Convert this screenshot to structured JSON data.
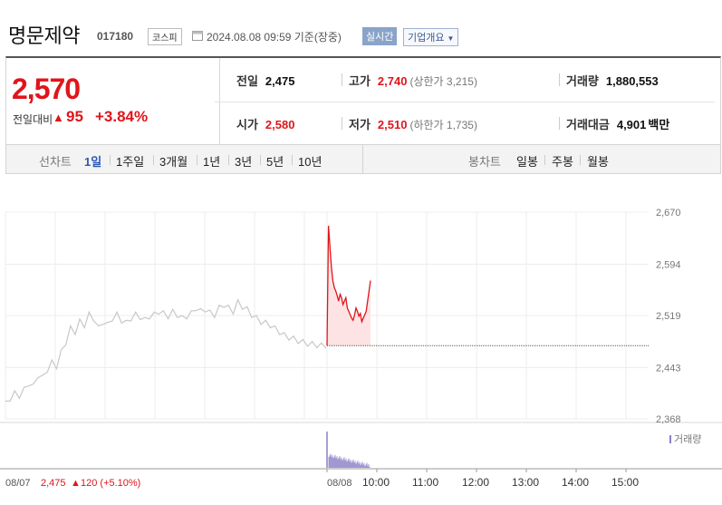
{
  "header": {
    "name": "명문제약",
    "code": "017180",
    "market": "코스피",
    "base_time": "2024.08.08 09:59 기준(장중)",
    "realtime": "실시간",
    "company_info": "기업개요"
  },
  "quote": {
    "price": "2,570",
    "prev_day_label": "전일대비",
    "change_symbol": "▲",
    "change": "95",
    "change_pct": "+3.84%",
    "prev_close_label": "전일",
    "prev_close": "2,475",
    "high_label": "고가",
    "high": "2,740",
    "upper_limit": "(상한가 3,215)",
    "volume_label": "거래량",
    "volume": "1,880,553",
    "open_label": "시가",
    "open": "2,580",
    "low_label": "저가",
    "low": "2,510",
    "lower_limit": "(하한가 1,735)",
    "amount_label": "거래대금",
    "amount": "4,901",
    "amount_unit": "백만"
  },
  "tabs": {
    "line_label": "선차트",
    "line_periods": [
      "1일",
      "1주일",
      "3개월",
      "1년",
      "3년",
      "5년",
      "10년"
    ],
    "active": "1일",
    "candle_label": "봉차트",
    "candle_periods": [
      "일봉",
      "주봉",
      "월봉"
    ]
  },
  "chart_data": {
    "type": "line",
    "y_ticks": [
      "2,670",
      "2,594",
      "2,519",
      "2,443",
      "2,368"
    ],
    "x_ticks": [
      "08/08",
      "10:00",
      "11:00",
      "12:00",
      "13:00",
      "14:00",
      "15:00"
    ],
    "volume_label": "거래량",
    "prev_close": 2475,
    "ylim": [
      2368,
      2670
    ],
    "prev_day": {
      "date": "08/07",
      "close_text": "2,475",
      "change_symbol": "▲",
      "change_text": "120 (+5.10%)",
      "values": [
        2390,
        2398,
        2405,
        2402,
        2410,
        2420,
        2415,
        2432,
        2428,
        2440,
        2450,
        2445,
        2465,
        2480,
        2500,
        2495,
        2510,
        2505,
        2520,
        2515,
        2500,
        2510,
        2505,
        2515,
        2520,
        2512,
        2508,
        2515,
        2520,
        2517,
        2512,
        2518,
        2520,
        2525,
        2522,
        2518,
        2524,
        2520,
        2515,
        2518,
        2522,
        2530,
        2525,
        2528,
        2523,
        2520,
        2530,
        2535,
        2530,
        2525,
        2538,
        2532,
        2528,
        2520,
        2515,
        2510,
        2508,
        2505,
        2500,
        2495,
        2490,
        2487,
        2485,
        2482,
        2480,
        2478,
        2477,
        2476,
        2475,
        2475
      ]
    },
    "today": {
      "values": [
        2475,
        2650,
        2620,
        2590,
        2570,
        2560,
        2555,
        2548,
        2540,
        2550,
        2545,
        2535,
        2540,
        2545,
        2530,
        2525,
        2520,
        2515,
        2512,
        2520,
        2530,
        2525,
        2518,
        2522,
        2510,
        2515,
        2520,
        2525,
        2540,
        2555,
        2570
      ]
    }
  },
  "colors": {
    "up": "#e0151b",
    "prev_line": "#c8c8c8",
    "area": "#fde3e4",
    "volume": "#8a7fc7"
  }
}
